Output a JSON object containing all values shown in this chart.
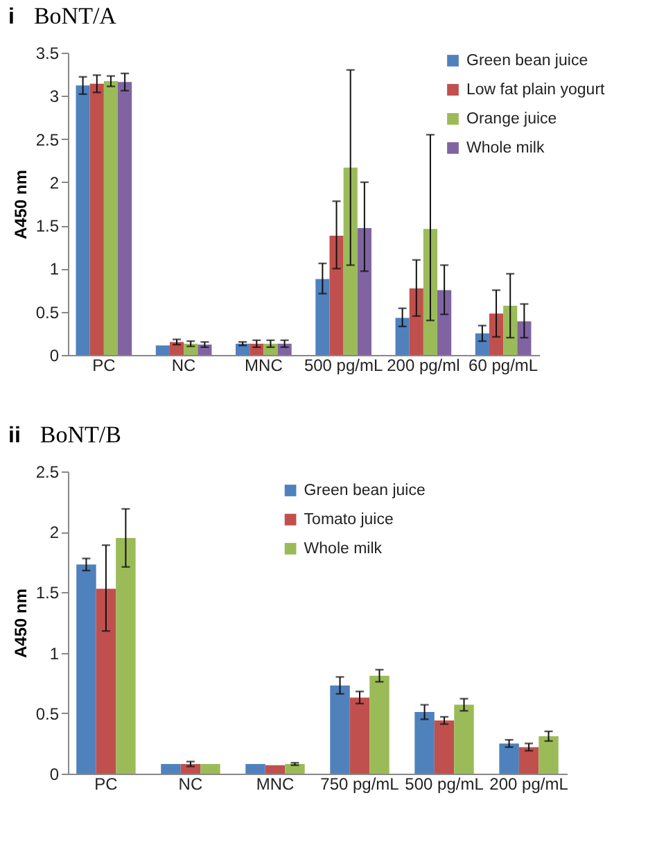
{
  "chart_data": [
    {
      "type": "bar",
      "title": "BoNT/A",
      "ylabel": "A450 nm",
      "annotations": [
        "i"
      ],
      "categories": [
        "PC",
        "NC",
        "MNC",
        "500 pg/mL",
        "200 pg/ml",
        "60 pg/mL"
      ],
      "ylim": [
        0,
        3.5
      ],
      "yticks": [
        0,
        0.5,
        1,
        1.5,
        2,
        2.5,
        3,
        3.5
      ],
      "grid": false,
      "legend": "top right",
      "series": [
        {
          "name": "Green bean juice",
          "color": "#4f81bd",
          "values": [
            3.12,
            0.11,
            0.13,
            0.88,
            0.43,
            0.25
          ],
          "errors": [
            0.1,
            null,
            0.02,
            [
              0.71,
              1.06
            ],
            [
              0.33,
              0.54
            ],
            [
              0.16,
              0.34
            ]
          ]
        },
        {
          "name": "Low fat plain yogurt",
          "color": "#c0504d",
          "values": [
            3.14,
            0.15,
            0.13,
            1.38,
            0.77,
            0.48
          ],
          "errors": [
            0.1,
            0.03,
            0.04,
            [
              1.0,
              1.78
            ],
            [
              0.45,
              1.1
            ],
            [
              0.21,
              0.75
            ]
          ]
        },
        {
          "name": "Orange juice",
          "color": "#9bbb59",
          "values": [
            3.17,
            0.13,
            0.13,
            2.17,
            1.46,
            0.57
          ],
          "errors": [
            0.06,
            0.03,
            0.04,
            [
              1.04,
              3.3
            ],
            [
              0.4,
              2.55
            ],
            [
              0.2,
              0.94
            ]
          ]
        },
        {
          "name": "Whole milk",
          "color": "#8064a2",
          "values": [
            3.16,
            0.12,
            0.13,
            1.47,
            0.75,
            0.39
          ],
          "errors": [
            0.1,
            0.03,
            0.04,
            [
              0.97,
              2.0
            ],
            [
              0.47,
              1.04
            ],
            [
              0.2,
              0.59
            ]
          ]
        }
      ]
    },
    {
      "type": "bar",
      "title": "BoNT/B",
      "ylabel": "A450 nm",
      "annotations": [
        "ii"
      ],
      "categories": [
        "PC",
        "NC",
        "MNC",
        "750 pg/mL",
        "500 pg/mL",
        "200 pg/mL"
      ],
      "ylim": [
        0,
        2.5
      ],
      "yticks": [
        0,
        0.5,
        1,
        1.5,
        2,
        2.5
      ],
      "grid": false,
      "legend": "top",
      "series": [
        {
          "name": "Green bean juice",
          "color": "#4f81bd",
          "values": [
            1.73,
            0.08,
            0.08,
            0.73,
            0.51,
            0.25
          ],
          "errors": [
            0.05,
            null,
            null,
            0.07,
            0.06,
            0.03
          ]
        },
        {
          "name": "Tomato juice",
          "color": "#c0504d",
          "values": [
            1.53,
            0.08,
            0.07,
            0.63,
            0.44,
            0.22
          ],
          "errors": [
            [
              1.18,
              1.89
            ],
            0.02,
            null,
            0.05,
            0.03,
            0.03
          ]
        },
        {
          "name": "Whole milk",
          "color": "#9bbb59",
          "values": [
            1.95,
            0.08,
            0.08,
            0.81,
            0.57,
            0.31
          ],
          "errors": [
            [
              1.71,
              2.19
            ],
            null,
            0.01,
            0.05,
            0.05,
            0.04
          ]
        }
      ]
    }
  ]
}
